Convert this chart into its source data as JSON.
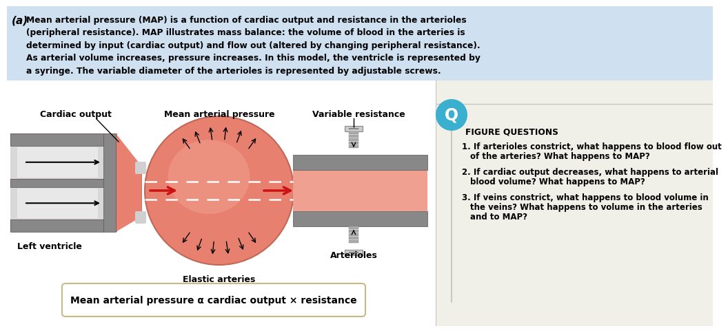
{
  "bg_top_color": "#cfe0f0",
  "right_panel_color": "#f0f0e8",
  "salmon_color": "#e07060",
  "salmon_mid": "#e88070",
  "salmon_light": "#f0a090",
  "gray_dark": "#888888",
  "gray_med": "#aaaaaa",
  "gray_light": "#cccccc",
  "gray_syringe": "#d8d8d8",
  "white_bg": "#ffffff",
  "title_label": "(a)",
  "title_lines": [
    "Mean arterial pressure (MAP) is a function of cardiac output and resistance in the arterioles",
    "(peripheral resistance). MAP illustrates mass balance: the volume of blood in the arteries is",
    "determined by input (cardiac output) and flow out (altered by changing peripheral resistance).",
    "As arterial volume increases, pressure increases. In this model, the ventricle is represented by",
    "a syringe. The variable diameter of the arterioles is represented by adjustable screws."
  ],
  "label_cardiac_output": "Cardiac output",
  "label_map": "Mean arterial pressure",
  "label_variable_resistance": "Variable resistance",
  "label_left_ventricle": "Left ventricle",
  "label_elastic_arteries": "Elastic arteries",
  "label_arterioles": "Arterioles",
  "formula_text": "Mean arterial pressure α cardiac output × resistance",
  "q_color": "#3aafce",
  "figure_questions_title": "FIGURE QUESTIONS",
  "q1_lines": [
    "1. If arterioles constrict, what happens to blood flow out",
    "of the arteries? What happens to MAP?"
  ],
  "q2_lines": [
    "2. If cardiac output decreases, what happens to arterial",
    "blood volume? What happens to MAP?"
  ],
  "q3_lines": [
    "3. If veins constrict, what happens to blood volume in",
    "the veins? What happens to volume in the arteries",
    "and to MAP?"
  ]
}
